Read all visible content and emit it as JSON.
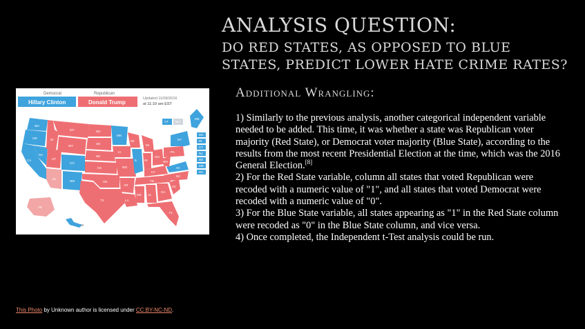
{
  "title": {
    "line1": "ANALYSIS QUESTION:",
    "line2a": "DO RED STATES, AS OPPOSED TO BLUE",
    "line2b": "STATES, PREDICT LOWER HATE CRIME RATES?"
  },
  "subhead": "Additional Wrangling:",
  "body": {
    "p1": "1) Similarly to the previous analysis, another categorical independent variable needed to be added. This time, it was whether a state was Republican voter majority (Red State), or Democrat voter majority (Blue State), according to the results from the most recent Presidential Election at the time, which was the 2016 General Election.",
    "p1_ref": "[8]",
    "p2": "2) For the Red State variable, column all states that voted Republican were recoded with a numeric value of \"1\", and all states that voted Democrat were recoded with a numeric value of \"0\".",
    "p3": "3) For the Blue State variable, all states appearing as \"1\" in the Red State column were recoded as \"0\" in the Blue State column, and vice versa.",
    "p4": "4) Once completed, the Independent t-Test analysis could be run."
  },
  "map": {
    "democrat_label": "Democrat",
    "republican_label": "Republican",
    "democrat_candidate": "Hillary Clinton",
    "republican_candidate": "Donald Trump",
    "updated_line1": "Updated 11/09/2016",
    "updated_line2": "at 11:10 am EST",
    "colors": {
      "blue": "#3fa3dd",
      "red": "#ee6f73",
      "pink": "#f2a6a6",
      "grey": "#cfd6dc"
    },
    "state_labels": [
      "WA",
      "OR",
      "CA",
      "NV",
      "ID",
      "MT",
      "WY",
      "UT",
      "AZ",
      "CO",
      "NM",
      "ND",
      "SD",
      "NE",
      "KS",
      "OK",
      "TX",
      "MN",
      "IA",
      "MO",
      "AR",
      "LA",
      "WI",
      "IL",
      "MI",
      "IN",
      "OH",
      "KY",
      "TN",
      "MS",
      "AL",
      "GA",
      "FL",
      "SC",
      "NC",
      "VA",
      "WV",
      "PA",
      "NY",
      "ME",
      "VT",
      "NH",
      "MA",
      "RI",
      "CT",
      "NJ",
      "DE",
      "MD",
      "DC",
      "AK",
      "HI"
    ]
  },
  "credit": {
    "photo_link": "This Photo",
    "middle": " by Unknown author is licensed under ",
    "license_link": "CC BY-NC-ND",
    "end": "."
  }
}
